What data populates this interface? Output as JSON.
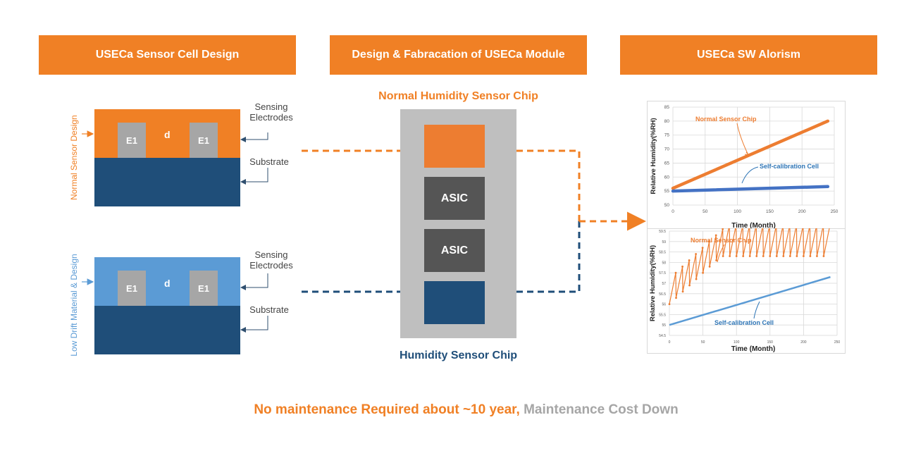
{
  "headers": {
    "cell_design": "USECa Sensor Cell Design",
    "module": "Design & Fabracation of USECa Module",
    "algorithm": "USECa SW Alorism"
  },
  "cell_design": {
    "normal_label": "Normal Sensor Design",
    "lowdrift_label": "Low Drift Material & Design",
    "electrode": "E1",
    "gap": "d",
    "sensing_line1": "Sensing",
    "sensing_line2": "Electrodes",
    "substrate": "Substrate"
  },
  "module": {
    "normal_chip_title": "Normal Humidity Sensor Chip",
    "humidity_chip_title": "Humidity Sensor Chip",
    "asic1": "ASIC",
    "asic2": "ASIC"
  },
  "footer": {
    "highlight": "No maintenance Required about ~10 year,",
    "rest": "Maintenance Cost Down"
  },
  "colors": {
    "orange": "#f08025",
    "navy": "#1f4e79",
    "light_blue": "#5b9bd5",
    "gray": "#a6a6a6"
  },
  "chart_data": [
    {
      "type": "line",
      "ylabel": "Relative Humidity(%RH)",
      "xlabel": "Time (Month)",
      "xlim": [
        0,
        250
      ],
      "ylim": [
        50,
        85
      ],
      "xticks": [
        0,
        50,
        100,
        150,
        200,
        250
      ],
      "yticks": [
        50,
        55,
        60,
        65,
        70,
        75,
        80,
        85
      ],
      "grid": true,
      "series": [
        {
          "name": "Normal Sensor Chip",
          "color": "#ed7d31",
          "x": [
            0,
            240
          ],
          "y": [
            56,
            80
          ]
        },
        {
          "name": "Self-calibration Cell",
          "color": "#4472c4",
          "x": [
            0,
            240
          ],
          "y": [
            55,
            56.6
          ]
        }
      ]
    },
    {
      "type": "line",
      "ylabel": "Relative Humidity(%RH)",
      "xlabel": "Time (Month)",
      "xlim": [
        0,
        250
      ],
      "ylim": [
        54.5,
        59.5
      ],
      "xticks": [
        0,
        50,
        100,
        150,
        200,
        250
      ],
      "yticks": [
        54.5,
        55,
        55.5,
        56,
        56.5,
        57,
        57.5,
        58,
        58.5,
        59,
        59.5
      ],
      "grid": true,
      "series": [
        {
          "name": "Normal Sensor Chip",
          "color": "#ed7d31",
          "sawtooth": {
            "period": 10,
            "start": 56,
            "ramp": 1.5,
            "drift_per_month": 0.0125,
            "end": 240
          }
        },
        {
          "name": "Self-calibration Cell",
          "color": "#5b9bd5",
          "x": [
            0,
            240
          ],
          "y": [
            55,
            57.3
          ]
        }
      ]
    }
  ]
}
